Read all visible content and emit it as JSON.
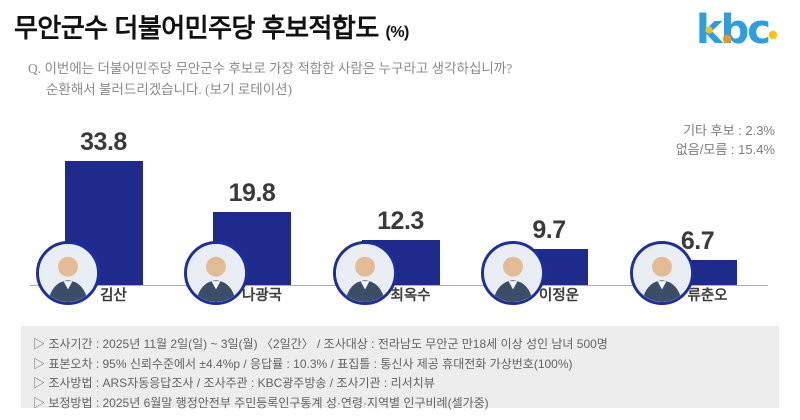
{
  "header": {
    "title": "무안군수 더불어민주당 후보적합도",
    "title_suffix": "(%)",
    "logo_text": "kbc",
    "brand_colors": {
      "blue": "#2b9fe0",
      "orange": "#f7941d",
      "yellow": "#ffc20e"
    }
  },
  "question": {
    "line1": "Q. 이번에는 더불어민주당 무안군수 후보로 가장 적합한 사람은 누구라고 생각하십니까?",
    "line2": "순환해서 불러드리겠습니다. (보기 로테이션)"
  },
  "side_stats": [
    "기타 후보 : 2.3%",
    "없음/모름 : 15.4%"
  ],
  "chart_data": {
    "type": "bar",
    "title": "무안군수 더불어민주당 후보적합도 (%)",
    "categories": [
      "김산",
      "나광국",
      "최옥수",
      "이정운",
      "류춘오"
    ],
    "values": [
      33.8,
      19.8,
      12.3,
      9.7,
      6.7
    ],
    "unit": "%",
    "bar_color": "#1e2b8c",
    "value_label_color": "#3a3a3a",
    "ylim": [
      0,
      38
    ],
    "grid": false,
    "legend": "none",
    "annotations": [
      "기타 후보 : 2.3%",
      "없음/모름 : 15.4%"
    ]
  },
  "footnotes": [
    "▷ 조사기간 : 2025년 11월 2일(일) ~ 3일(월) 〈2일간〉 / 조사대상 : 전라남도 무안군 만18세 이상 성인 남녀 500명",
    "▷ 표본오차 : 95% 신뢰수준에서 ±4.4%p / 응답률 : 10.3% / 표집틀 : 통신사 제공 휴대전화 가상번호(100%)",
    "▷ 조사방법 : ARS자동응답조사 / 조사주관 : KBC광주방송 / 조사기관 : 리서치뷰",
    "▷ 보정방법 : 2025년 6월말 행정안전부 주민등록인구통계 성·연령·지역별 인구비례(셀가중)"
  ]
}
